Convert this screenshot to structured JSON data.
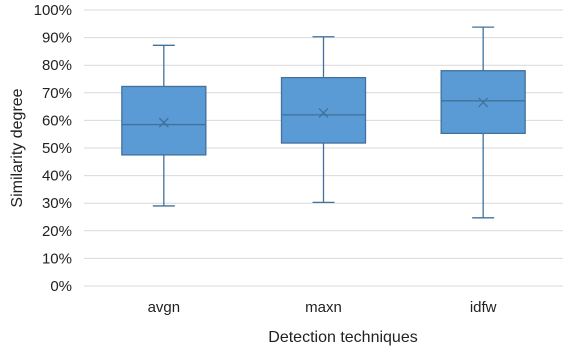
{
  "chart_data": {
    "type": "box",
    "title": "",
    "xlabel": "Detection techniques",
    "ylabel": "Similarity degree",
    "ylim": [
      0,
      100
    ],
    "yticks": [
      0,
      10,
      20,
      30,
      40,
      50,
      60,
      70,
      80,
      90,
      100
    ],
    "ytick_labels": [
      "0%",
      "10%",
      "20%",
      "30%",
      "40%",
      "50%",
      "60%",
      "70%",
      "80%",
      "90%",
      "100%"
    ],
    "categories": [
      "avgn",
      "maxn",
      "idfw"
    ],
    "boxes": [
      {
        "category": "avgn",
        "min": 29.0,
        "q1": 47.5,
        "median": 58.5,
        "mean": 59.2,
        "q3": 72.3,
        "max": 87.2
      },
      {
        "category": "maxn",
        "min": 30.3,
        "q1": 51.8,
        "median": 62.0,
        "mean": 62.7,
        "q3": 75.5,
        "max": 90.3
      },
      {
        "category": "idfw",
        "min": 24.7,
        "q1": 55.3,
        "median": 67.1,
        "mean": 66.5,
        "q3": 78.0,
        "max": 93.8
      }
    ],
    "grid": true,
    "colors": {
      "box_fill": "#5b9bd5",
      "box_edge": "#41719c",
      "grid": "#d9d9d9"
    }
  }
}
